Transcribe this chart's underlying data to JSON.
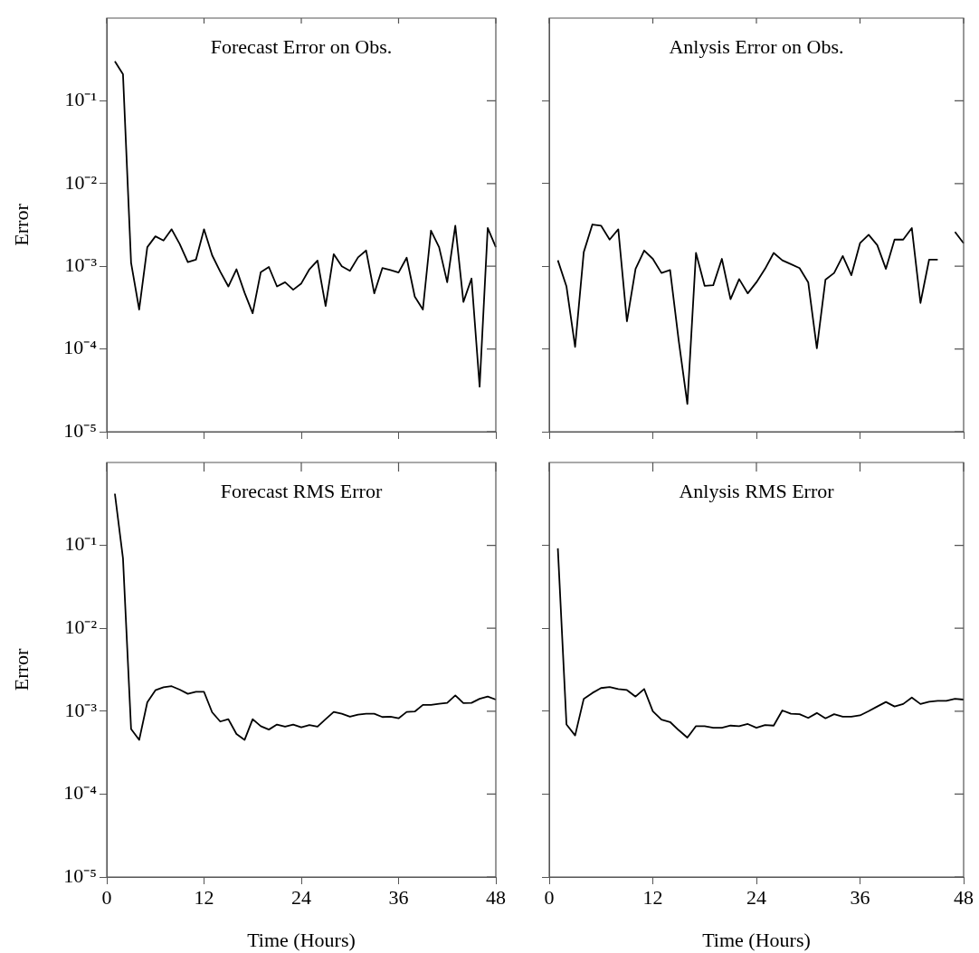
{
  "chart_data": [
    {
      "type": "line",
      "title": "Forecast Error on Obs.",
      "ylabel": "Error",
      "log": true,
      "tick_labels": "y",
      "color": "#000000",
      "x": [
        1,
        2,
        3,
        4,
        5,
        6,
        7,
        8,
        9,
        10,
        11,
        12,
        13,
        14,
        15,
        16,
        17,
        18,
        19,
        20,
        21,
        22,
        23,
        24,
        25,
        26,
        27,
        28,
        29,
        30,
        31,
        32,
        33,
        34,
        35,
        36,
        37,
        38,
        39,
        40,
        41,
        42,
        43,
        44,
        45,
        46,
        47,
        48
      ],
      "values": [
        0.3,
        0.21,
        0.0011,
        0.0003,
        0.0017,
        0.0023,
        0.00205,
        0.0028,
        0.00186,
        0.00112,
        0.0012,
        0.0028,
        0.00136,
        0.00086,
        0.00057,
        0.00092,
        0.00048,
        0.00027,
        0.00085,
        0.00098,
        0.00057,
        0.00064,
        0.00052,
        0.00062,
        0.00092,
        0.00117,
        0.00033,
        0.0014,
        0.001,
        0.00088,
        0.00128,
        0.00155,
        0.00047,
        0.00095,
        0.0009,
        0.00084,
        0.00127,
        0.00043,
        0.0003,
        0.0027,
        0.0017,
        0.00064,
        0.0031,
        0.00037,
        0.00071,
        3.5e-05,
        0.0029,
        0.0017
      ],
      "xlim": [
        0,
        48
      ],
      "xticks": [
        {
          "value": 0,
          "label": null
        },
        {
          "value": 12,
          "label": null
        },
        {
          "value": 24,
          "label": null
        },
        {
          "value": 36,
          "label": null
        },
        {
          "value": 48,
          "label": null
        }
      ],
      "ylim": [
        1e-05,
        1
      ],
      "yticks": [
        {
          "value": 1e-05,
          "label": "10⁻⁵"
        },
        {
          "value": 0.0001,
          "label": "10⁻⁴"
        },
        {
          "value": 0.001,
          "label": "10⁻³"
        },
        {
          "value": 0.01,
          "label": "10⁻²"
        },
        {
          "value": 0.1,
          "label": "10⁻¹"
        }
      ]
    },
    {
      "type": "line",
      "title": "Anlysis Error on Obs.",
      "log": true,
      "tick_labels": false,
      "color": "#000000",
      "x": [
        1,
        2,
        3,
        4,
        5,
        6,
        7,
        8,
        9,
        10,
        11,
        12,
        13,
        14,
        15,
        16,
        17,
        18,
        19,
        20,
        21,
        22,
        23,
        24,
        25,
        26,
        27,
        28,
        29,
        30,
        31,
        32,
        33,
        34,
        35,
        36,
        37,
        38,
        39,
        40,
        41,
        42,
        43,
        44,
        45,
        46,
        47,
        48
      ],
      "values": [
        0.00118,
        0.00057,
        0.000106,
        0.00148,
        0.0032,
        0.0031,
        0.0021,
        0.0028,
        0.000216,
        0.00093,
        0.00155,
        0.00123,
        0.00083,
        0.0009,
        0.000126,
        2.16e-05,
        0.00145,
        0.00058,
        0.00059,
        0.00123,
        0.0004,
        0.0007,
        0.00047,
        0.00064,
        0.00093,
        0.00145,
        0.00118,
        0.00106,
        0.00095,
        0.00064,
        0.000102,
        0.00069,
        0.00083,
        0.00133,
        0.00078,
        0.0019,
        0.0024,
        0.0018,
        0.00093,
        0.0021,
        0.0021,
        0.0029,
        0.00036,
        0.0012,
        0.0012,
        null,
        0.0026,
        0.0019
      ],
      "xlim": [
        0,
        48
      ],
      "xticks": [
        {
          "value": 0,
          "label": null
        },
        {
          "value": 12,
          "label": null
        },
        {
          "value": 24,
          "label": null
        },
        {
          "value": 36,
          "label": null
        },
        {
          "value": 48,
          "label": null
        }
      ],
      "ylim": [
        1e-05,
        1
      ],
      "yticks": [
        {
          "value": 1e-05,
          "label": null
        },
        {
          "value": 0.0001,
          "label": null
        },
        {
          "value": 0.001,
          "label": null
        },
        {
          "value": 0.01,
          "label": null
        },
        {
          "value": 0.1,
          "label": null
        }
      ]
    },
    {
      "type": "line",
      "title": "Forecast RMS Error",
      "xlabel": "Time (Hours)",
      "ylabel": "Error",
      "log": true,
      "color": "#000000",
      "x": [
        1,
        2,
        3,
        4,
        5,
        6,
        7,
        8,
        9,
        10,
        11,
        12,
        13,
        14,
        15,
        16,
        17,
        18,
        19,
        20,
        21,
        22,
        23,
        24,
        25,
        26,
        27,
        28,
        29,
        30,
        31,
        32,
        33,
        34,
        35,
        36,
        37,
        38,
        39,
        40,
        41,
        42,
        43,
        44,
        45,
        46,
        47,
        48
      ],
      "values": [
        0.42,
        0.07,
        0.00061,
        0.00045,
        0.00128,
        0.00179,
        0.00194,
        0.002,
        0.00182,
        0.00162,
        0.00171,
        0.00171,
        0.00097,
        0.00075,
        0.0008,
        0.00053,
        0.00045,
        0.0008,
        0.00066,
        0.0006,
        0.00069,
        0.00065,
        0.00069,
        0.00064,
        0.00068,
        0.00065,
        0.0008,
        0.00098,
        0.00093,
        0.00086,
        0.00091,
        0.00093,
        0.00093,
        0.00085,
        0.00086,
        0.00082,
        0.00098,
        0.00099,
        0.00119,
        0.00119,
        0.00123,
        0.00126,
        0.00155,
        0.00125,
        0.00126,
        0.00141,
        0.0015,
        0.00138
      ],
      "xlim": [
        0,
        48
      ],
      "xticks": [
        0,
        12,
        24,
        36,
        48
      ],
      "ylim": [
        1e-05,
        1
      ],
      "yticks": [
        {
          "value": 1e-05,
          "label": "10⁻⁵"
        },
        {
          "value": 0.0001,
          "label": "10⁻⁴"
        },
        {
          "value": 0.001,
          "label": "10⁻³"
        },
        {
          "value": 0.01,
          "label": "10⁻²"
        },
        {
          "value": 0.1,
          "label": "10⁻¹"
        }
      ]
    },
    {
      "type": "line",
      "title": "Anlysis RMS Error",
      "xlabel": "Time (Hours)",
      "log": true,
      "tick_labels": "x",
      "color": "#000000",
      "x": [
        1,
        2,
        3,
        4,
        5,
        6,
        7,
        8,
        9,
        10,
        11,
        12,
        13,
        14,
        15,
        16,
        17,
        18,
        19,
        20,
        21,
        22,
        23,
        24,
        25,
        26,
        27,
        28,
        29,
        30,
        31,
        32,
        33,
        34,
        35,
        36,
        37,
        38,
        39,
        40,
        41,
        42,
        43,
        44,
        45,
        46,
        47,
        48
      ],
      "values": [
        0.092,
        0.00069,
        0.00051,
        0.00141,
        0.00166,
        0.0019,
        0.00196,
        0.00185,
        0.0018,
        0.0015,
        0.00185,
        0.001,
        0.00079,
        0.00074,
        0.00059,
        0.00048,
        0.00066,
        0.00066,
        0.00063,
        0.00063,
        0.00067,
        0.00066,
        0.0007,
        0.00063,
        0.00068,
        0.00067,
        0.00102,
        0.00093,
        0.00092,
        0.00083,
        0.00095,
        0.00082,
        0.00092,
        0.00086,
        0.00086,
        0.00089,
        0.001,
        0.00114,
        0.00129,
        0.00114,
        0.00122,
        0.00146,
        0.00122,
        0.0013,
        0.00133,
        0.00133,
        0.00141,
        0.00138
      ],
      "xlim": [
        0,
        48
      ],
      "xticks": [
        0,
        12,
        24,
        36,
        48
      ],
      "ylim": [
        1e-05,
        1
      ],
      "yticks": [
        {
          "value": 1e-05,
          "label": null
        },
        {
          "value": 0.0001,
          "label": null
        },
        {
          "value": 0.001,
          "label": null
        },
        {
          "value": 0.01,
          "label": null
        },
        {
          "value": 0.1,
          "label": null
        }
      ]
    }
  ]
}
